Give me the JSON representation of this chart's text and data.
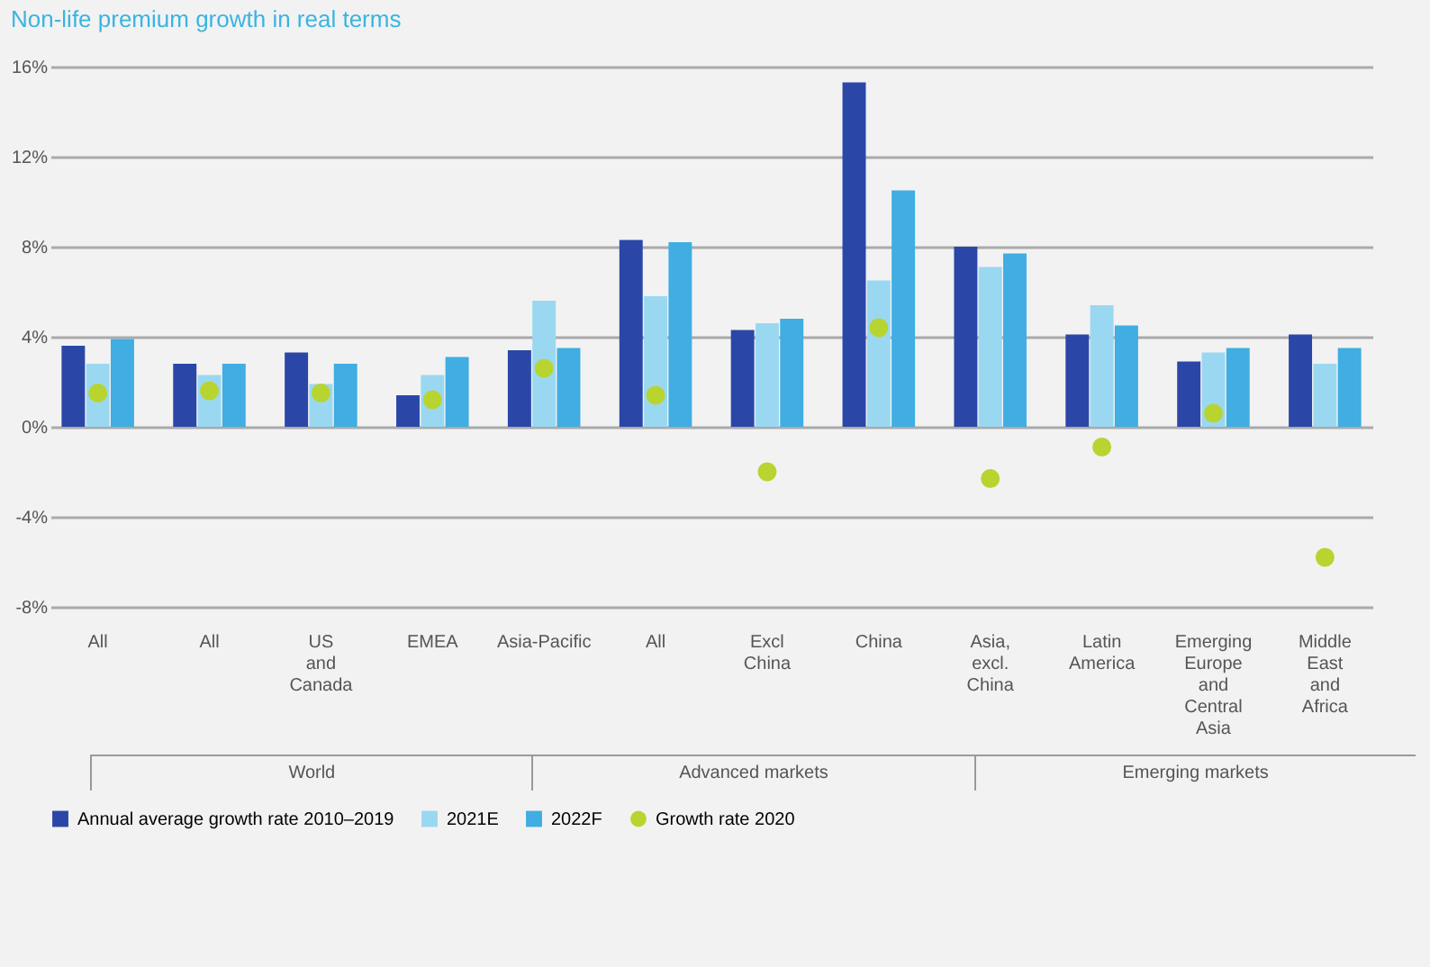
{
  "chart_data": {
    "type": "bar",
    "title": "Non-life premium growth in real terms",
    "categories": [
      "All",
      "All",
      "US and Canada",
      "EMEA",
      "Asia-Pacific",
      "All",
      "Excl China",
      "China",
      "Asia, excl. China",
      "Latin America",
      "Emerging Europe and Central Asia",
      "Middle East and Africa"
    ],
    "series": [
      {
        "name": "Annual average growth rate 2010–2019",
        "color": "#2a47a8",
        "values": [
          3.6,
          2.8,
          3.3,
          1.4,
          3.4,
          8.3,
          4.3,
          15.3,
          8.0,
          4.1,
          2.9,
          4.1
        ]
      },
      {
        "name": "2021E",
        "color": "#9ad8f2",
        "values": [
          2.8,
          2.3,
          1.9,
          2.3,
          5.6,
          5.8,
          4.6,
          6.5,
          7.1,
          5.4,
          3.3,
          2.8
        ]
      },
      {
        "name": "2022F",
        "color": "#40ade3",
        "values": [
          3.9,
          2.8,
          2.8,
          3.1,
          3.5,
          8.2,
          4.8,
          10.5,
          7.7,
          4.5,
          3.5,
          3.5
        ]
      },
      {
        "name": "Growth rate 2020",
        "type": "scatter",
        "color": "#b8d430",
        "values": [
          1.5,
          1.6,
          1.5,
          1.2,
          2.6,
          1.4,
          -2.0,
          4.4,
          -2.3,
          -0.9,
          0.6,
          -5.8
        ]
      }
    ],
    "ylim": [
      -8,
      16
    ],
    "yticks": [
      {
        "value": -8,
        "label": "-8%"
      },
      {
        "value": -4,
        "label": "-4%"
      },
      {
        "value": 0,
        "label": "0%"
      },
      {
        "value": 4,
        "label": "4%"
      },
      {
        "value": 8,
        "label": "8%"
      },
      {
        "value": 12,
        "label": "12%"
      },
      {
        "value": 16,
        "label": "16%"
      }
    ],
    "grid": "y",
    "legend": "bottom",
    "marker": "circle",
    "annotations": [
      "World",
      "Advanced markets",
      "Emerging markets"
    ]
  }
}
